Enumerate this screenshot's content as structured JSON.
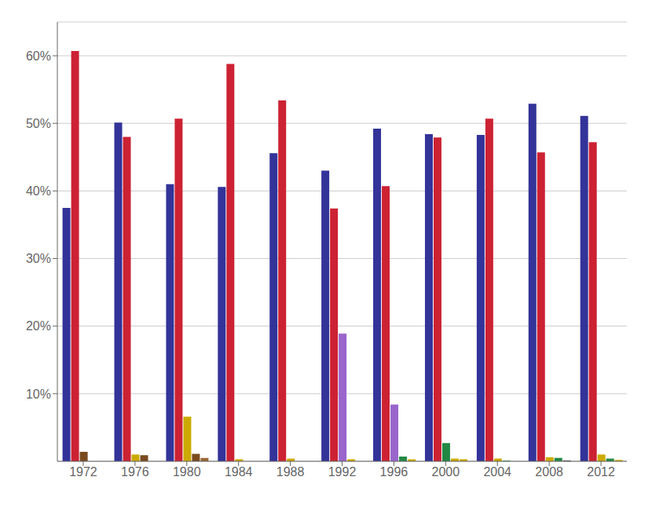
{
  "chart_data": {
    "type": "bar",
    "categories": [
      "1972",
      "1976",
      "1980",
      "1984",
      "1988",
      "1992",
      "1996",
      "2000",
      "2004",
      "2008",
      "2012"
    ],
    "series": [
      {
        "color": "#333399",
        "values": [
          0.375,
          0.501,
          0.41,
          0.406,
          0.456,
          0.43,
          0.492,
          0.484,
          0.483,
          0.529,
          0.511
        ]
      },
      {
        "color": "#cc2233",
        "values": [
          0.607,
          0.48,
          0.507,
          0.588,
          0.534,
          0.374,
          0.407,
          0.479,
          0.507,
          0.457,
          0.472
        ]
      },
      {
        "colors": [
          "#7a4a1e",
          "#ccaa00",
          "#ccaa00",
          "#ccaa00",
          "#ccaa00",
          "#9966cc",
          "#9966cc",
          "#228844",
          "#ccaa00",
          "#ccaa00",
          "#ccaa00"
        ],
        "values": [
          0.014,
          0.01,
          0.066,
          0.003,
          0.004,
          0.189,
          0.084,
          0.027,
          0.004,
          0.006,
          0.01
        ]
      },
      {
        "colors": [
          null,
          "#7a4a1e",
          "#7a4a1e",
          null,
          null,
          "#ccaa00",
          "#228844",
          "#ccaa00",
          "#228844",
          "#228844",
          "#228844"
        ],
        "values": [
          null,
          0.009,
          0.011,
          null,
          null,
          0.003,
          0.007,
          0.004,
          0.001,
          0.005,
          0.004
        ]
      },
      {
        "colors": [
          null,
          null,
          "#996633",
          null,
          null,
          null,
          "#ccaa00",
          "#ccaa00",
          null,
          "#111111",
          "#ccaa00"
        ],
        "values": [
          null,
          null,
          0.005,
          null,
          null,
          null,
          0.003,
          0.003,
          null,
          0.001,
          0.002
        ]
      }
    ],
    "ylim": [
      0,
      0.65
    ],
    "yticks": [
      {
        "value": 0.1,
        "label": "10%"
      },
      {
        "value": 0.2,
        "label": "20%"
      },
      {
        "value": 0.3,
        "label": "30%"
      },
      {
        "value": 0.4,
        "label": "40%"
      },
      {
        "value": 0.5,
        "label": "50%"
      },
      {
        "value": 0.6,
        "label": "60%"
      }
    ],
    "grid": true
  }
}
